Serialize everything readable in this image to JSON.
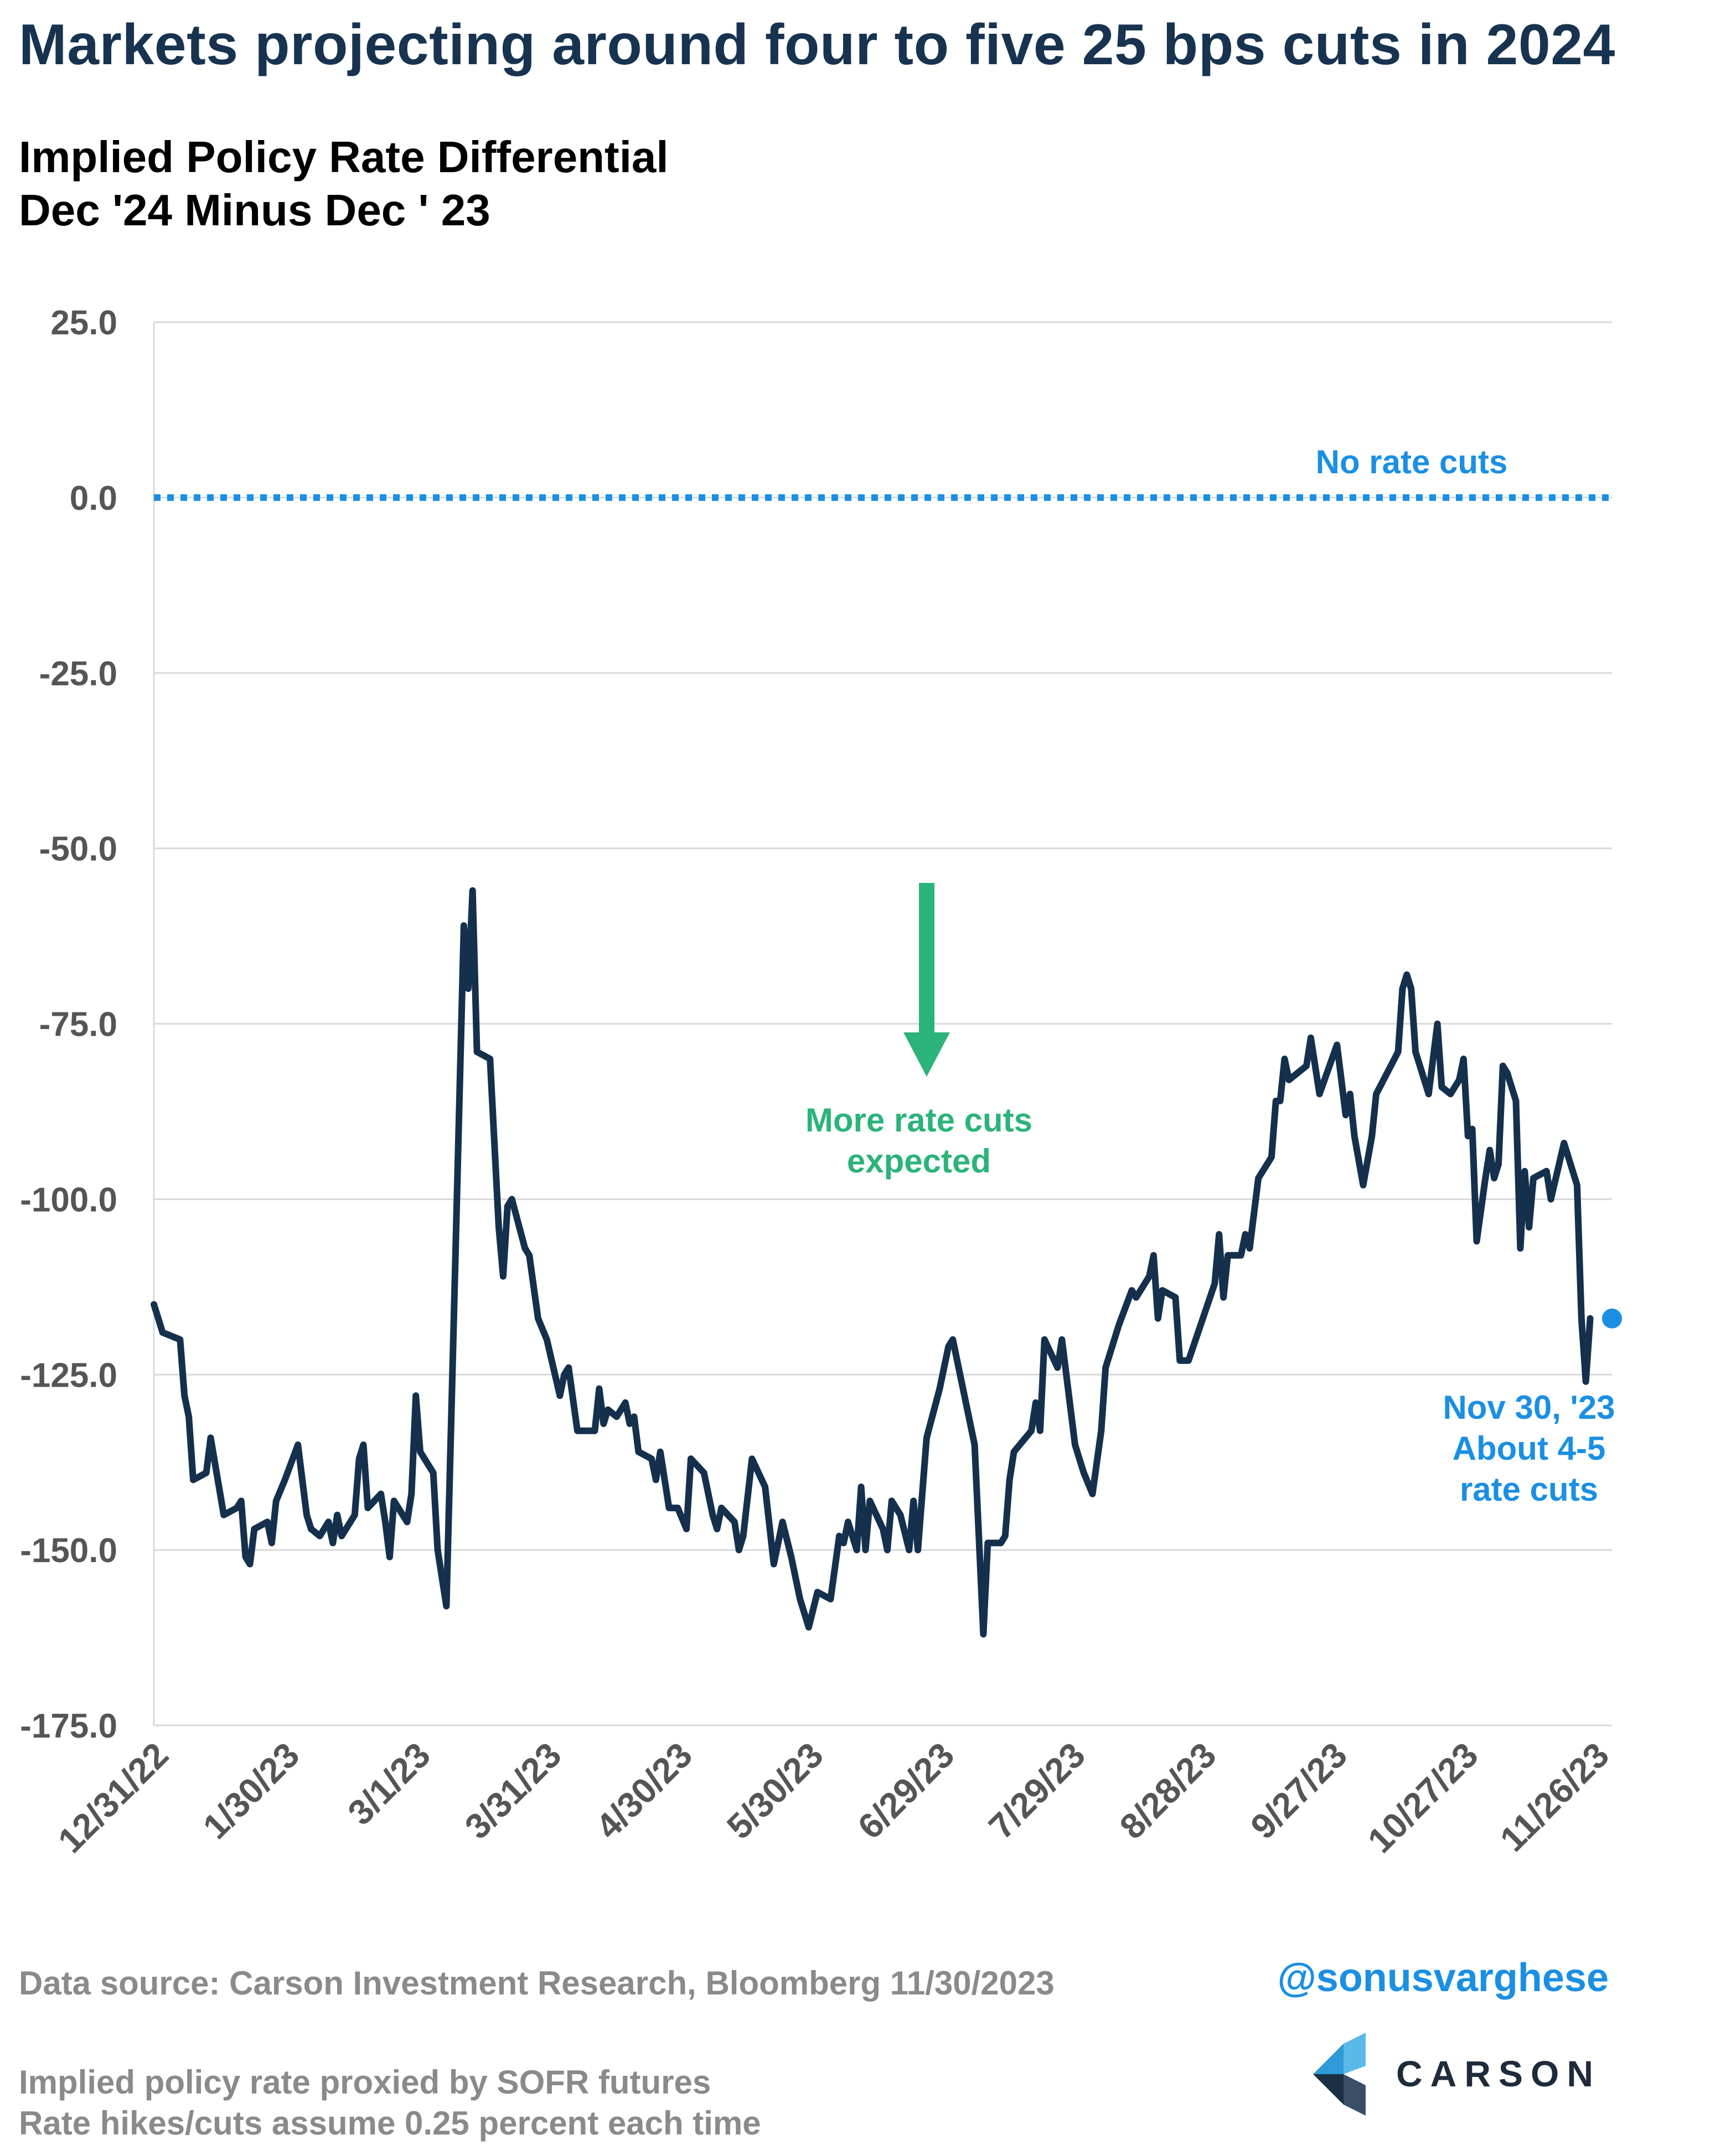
{
  "page": {
    "title": "Markets projecting around four to five 25 bps cuts in 2024",
    "subtitle_line1": "Implied Policy Rate Differential",
    "subtitle_line2": "Dec '24 Minus Dec ' 23",
    "source": "Data source: Carson Investment Research, Bloomberg   11/30/2023",
    "note_line1": "Implied policy rate proxied by SOFR futures",
    "note_line2": "Rate hikes/cuts assume 0.25 percent each time",
    "handle": "@sonusvarghese",
    "logo_text": "CARSON"
  },
  "chart_data": {
    "type": "line",
    "title": "",
    "xlabel": "",
    "ylabel": "",
    "ylim": [
      -175,
      25
    ],
    "yticks": [
      25,
      0,
      -25,
      -50,
      -75,
      -100,
      -125,
      -150,
      -175
    ],
    "ytick_labels": [
      "25.0",
      "0.0",
      "-25.0",
      "-50.0",
      "-75.0",
      "-100.0",
      "-125.0",
      "-150.0",
      "-175.0"
    ],
    "xlim": [
      "2022-12-31",
      "2023-11-30"
    ],
    "xticks": [
      "2022-12-31",
      "2023-01-30",
      "2023-03-01",
      "2023-03-31",
      "2023-04-30",
      "2023-05-30",
      "2023-06-29",
      "2023-07-29",
      "2023-08-28",
      "2023-09-27",
      "2023-10-27",
      "2023-11-26"
    ],
    "xtick_labels": [
      "12/31/22",
      "1/30/23",
      "3/1/23",
      "3/31/23",
      "4/30/23",
      "5/30/23",
      "6/29/23",
      "7/29/23",
      "8/28/23",
      "9/27/23",
      "10/27/23",
      "11/26/23"
    ],
    "grid": "horizontal",
    "colors": {
      "series": "#14304d",
      "reference": "#1a8fe3",
      "annotation_green": "#2bb37a",
      "annotation_blue": "#1a8fe3"
    },
    "series": [
      {
        "points": [
          [
            "2022-12-31",
            -115
          ],
          [
            "2023-01-02",
            -119
          ],
          [
            "2023-01-06",
            -120
          ],
          [
            "2023-01-07",
            -128
          ],
          [
            "2023-01-08",
            -131
          ],
          [
            "2023-01-09",
            -140
          ],
          [
            "2023-01-12",
            -139
          ],
          [
            "2023-01-13",
            -134
          ],
          [
            "2023-01-16",
            -145
          ],
          [
            "2023-01-19",
            -144
          ],
          [
            "2023-01-20",
            -143
          ],
          [
            "2023-01-21",
            -151
          ],
          [
            "2023-01-22",
            -152
          ],
          [
            "2023-01-23",
            -147
          ],
          [
            "2023-01-26",
            -146
          ],
          [
            "2023-01-27",
            -149
          ],
          [
            "2023-01-28",
            -143
          ],
          [
            "2023-01-30",
            -140
          ],
          [
            "2023-02-02",
            -135
          ],
          [
            "2023-02-04",
            -145
          ],
          [
            "2023-02-05",
            -147
          ],
          [
            "2023-02-07",
            -148
          ],
          [
            "2023-02-09",
            -146
          ],
          [
            "2023-02-10",
            -149
          ],
          [
            "2023-02-11",
            -145
          ],
          [
            "2023-02-12",
            -148
          ],
          [
            "2023-02-15",
            -145
          ],
          [
            "2023-02-16",
            -137
          ],
          [
            "2023-02-17",
            -135
          ],
          [
            "2023-02-18",
            -144
          ],
          [
            "2023-02-21",
            -142
          ],
          [
            "2023-02-22",
            -146
          ],
          [
            "2023-02-23",
            -151
          ],
          [
            "2023-02-24",
            -143
          ],
          [
            "2023-02-27",
            -146
          ],
          [
            "2023-02-28",
            -142
          ],
          [
            "2023-03-01",
            -128
          ],
          [
            "2023-03-02",
            -136
          ],
          [
            "2023-03-05",
            -139
          ],
          [
            "2023-03-06",
            -150
          ],
          [
            "2023-03-08",
            -158
          ],
          [
            "2023-03-10",
            -110
          ],
          [
            "2023-03-12",
            -61
          ],
          [
            "2023-03-13",
            -70
          ],
          [
            "2023-03-14",
            -56
          ],
          [
            "2023-03-15",
            -79
          ],
          [
            "2023-03-18",
            -80
          ],
          [
            "2023-03-20",
            -104
          ],
          [
            "2023-03-21",
            -111
          ],
          [
            "2023-03-22",
            -101
          ],
          [
            "2023-03-23",
            -100
          ],
          [
            "2023-03-26",
            -107
          ],
          [
            "2023-03-27",
            -108
          ],
          [
            "2023-03-29",
            -117
          ],
          [
            "2023-03-31",
            -120
          ],
          [
            "2023-04-03",
            -128
          ],
          [
            "2023-04-04",
            -125
          ],
          [
            "2023-04-05",
            -124
          ],
          [
            "2023-04-07",
            -133
          ],
          [
            "2023-04-11",
            -133
          ],
          [
            "2023-04-12",
            -127
          ],
          [
            "2023-04-13",
            -132
          ],
          [
            "2023-04-14",
            -130
          ],
          [
            "2023-04-16",
            -131
          ],
          [
            "2023-04-18",
            -129
          ],
          [
            "2023-04-19",
            -132
          ],
          [
            "2023-04-20",
            -131
          ],
          [
            "2023-04-21",
            -136
          ],
          [
            "2023-04-24",
            -137
          ],
          [
            "2023-04-25",
            -140
          ],
          [
            "2023-04-26",
            -136
          ],
          [
            "2023-04-28",
            -144
          ],
          [
            "2023-04-30",
            -144
          ],
          [
            "2023-05-02",
            -147
          ],
          [
            "2023-05-03",
            -137
          ],
          [
            "2023-05-06",
            -139
          ],
          [
            "2023-05-08",
            -145
          ],
          [
            "2023-05-09",
            -147
          ],
          [
            "2023-05-10",
            -144
          ],
          [
            "2023-05-13",
            -146
          ],
          [
            "2023-05-14",
            -150
          ],
          [
            "2023-05-15",
            -148
          ],
          [
            "2023-05-17",
            -137
          ],
          [
            "2023-05-20",
            -141
          ],
          [
            "2023-05-22",
            -152
          ],
          [
            "2023-05-24",
            -146
          ],
          [
            "2023-05-26",
            -151
          ],
          [
            "2023-05-28",
            -157
          ],
          [
            "2023-05-30",
            -161
          ],
          [
            "2023-06-01",
            -156
          ],
          [
            "2023-06-04",
            -157
          ],
          [
            "2023-06-06",
            -148
          ],
          [
            "2023-06-07",
            -149
          ],
          [
            "2023-06-08",
            -146
          ],
          [
            "2023-06-10",
            -150
          ],
          [
            "2023-06-11",
            -141
          ],
          [
            "2023-06-12",
            -150
          ],
          [
            "2023-06-13",
            -143
          ],
          [
            "2023-06-16",
            -147
          ],
          [
            "2023-06-17",
            -150
          ],
          [
            "2023-06-18",
            -143
          ],
          [
            "2023-06-20",
            -145
          ],
          [
            "2023-06-22",
            -150
          ],
          [
            "2023-06-23",
            -143
          ],
          [
            "2023-06-24",
            -150
          ],
          [
            "2023-06-26",
            -134
          ],
          [
            "2023-06-29",
            -127
          ],
          [
            "2023-07-01",
            -121
          ],
          [
            "2023-07-02",
            -120
          ],
          [
            "2023-07-07",
            -135
          ],
          [
            "2023-07-09",
            -162
          ],
          [
            "2023-07-10",
            -149
          ],
          [
            "2023-07-13",
            -149
          ],
          [
            "2023-07-14",
            -148
          ],
          [
            "2023-07-15",
            -140
          ],
          [
            "2023-07-16",
            -136
          ],
          [
            "2023-07-20",
            -133
          ],
          [
            "2023-07-21",
            -129
          ],
          [
            "2023-07-22",
            -133
          ],
          [
            "2023-07-23",
            -120
          ],
          [
            "2023-07-26",
            -124
          ],
          [
            "2023-07-27",
            -120
          ],
          [
            "2023-07-28",
            -125
          ],
          [
            "2023-07-30",
            -135
          ],
          [
            "2023-08-01",
            -139
          ],
          [
            "2023-08-03",
            -142
          ],
          [
            "2023-08-05",
            -133
          ],
          [
            "2023-08-06",
            -124
          ],
          [
            "2023-08-09",
            -118
          ],
          [
            "2023-08-12",
            -113
          ],
          [
            "2023-08-13",
            -114
          ],
          [
            "2023-08-16",
            -111
          ],
          [
            "2023-08-17",
            -108
          ],
          [
            "2023-08-18",
            -117
          ],
          [
            "2023-08-19",
            -113
          ],
          [
            "2023-08-22",
            -114
          ],
          [
            "2023-08-23",
            -123
          ],
          [
            "2023-08-25",
            -123
          ],
          [
            "2023-08-31",
            -112
          ],
          [
            "2023-09-01",
            -105
          ],
          [
            "2023-09-02",
            -114
          ],
          [
            "2023-09-03",
            -108
          ],
          [
            "2023-09-06",
            -108
          ],
          [
            "2023-09-07",
            -105
          ],
          [
            "2023-09-08",
            -107
          ],
          [
            "2023-09-10",
            -97
          ],
          [
            "2023-09-13",
            -94
          ],
          [
            "2023-09-14",
            -86
          ],
          [
            "2023-09-15",
            -86
          ],
          [
            "2023-09-16",
            -80
          ],
          [
            "2023-09-17",
            -83
          ],
          [
            "2023-09-19",
            -82
          ],
          [
            "2023-09-21",
            -81
          ],
          [
            "2023-09-22",
            -77
          ],
          [
            "2023-09-24",
            -85
          ],
          [
            "2023-09-28",
            -78
          ],
          [
            "2023-09-29",
            -83
          ],
          [
            "2023-09-30",
            -88
          ],
          [
            "2023-10-01",
            -85
          ],
          [
            "2023-10-02",
            -91
          ],
          [
            "2023-10-04",
            -98
          ],
          [
            "2023-10-06",
            -91
          ],
          [
            "2023-10-07",
            -85
          ],
          [
            "2023-10-12",
            -79
          ],
          [
            "2023-10-13",
            -70
          ],
          [
            "2023-10-14",
            -68
          ],
          [
            "2023-10-15",
            -70
          ],
          [
            "2023-10-16",
            -79
          ],
          [
            "2023-10-19",
            -85
          ],
          [
            "2023-10-21",
            -75
          ],
          [
            "2023-10-22",
            -84
          ],
          [
            "2023-10-24",
            -85
          ],
          [
            "2023-10-26",
            -83
          ],
          [
            "2023-10-27",
            -80
          ],
          [
            "2023-10-28",
            -91
          ],
          [
            "2023-10-29",
            -90
          ],
          [
            "2023-10-30",
            -106
          ],
          [
            "2023-11-01",
            -97
          ],
          [
            "2023-11-02",
            -93
          ],
          [
            "2023-11-03",
            -97
          ],
          [
            "2023-11-04",
            -95
          ],
          [
            "2023-11-05",
            -81
          ],
          [
            "2023-11-06",
            -82
          ],
          [
            "2023-11-08",
            -86
          ],
          [
            "2023-11-09",
            -107
          ],
          [
            "2023-11-10",
            -96
          ],
          [
            "2023-11-11",
            -104
          ],
          [
            "2023-11-12",
            -97
          ],
          [
            "2023-11-15",
            -96
          ],
          [
            "2023-11-16",
            -100
          ],
          [
            "2023-11-19",
            -92
          ],
          [
            "2023-11-22",
            -98
          ],
          [
            "2023-11-23",
            -117
          ],
          [
            "2023-11-24",
            -126
          ],
          [
            "2023-11-25",
            -117
          ]
        ],
        "last_point": [
          "2023-11-30",
          -117
        ]
      }
    ],
    "reference_line": {
      "y": 0,
      "style": "dotted",
      "label": "No rate cuts"
    },
    "annotations": {
      "arrow_text_line1": "More rate cuts",
      "arrow_text_line2": "expected",
      "endpoint_line1": "Nov 30, '23",
      "endpoint_line2": "About 4-5",
      "endpoint_line3": "rate cuts"
    }
  }
}
